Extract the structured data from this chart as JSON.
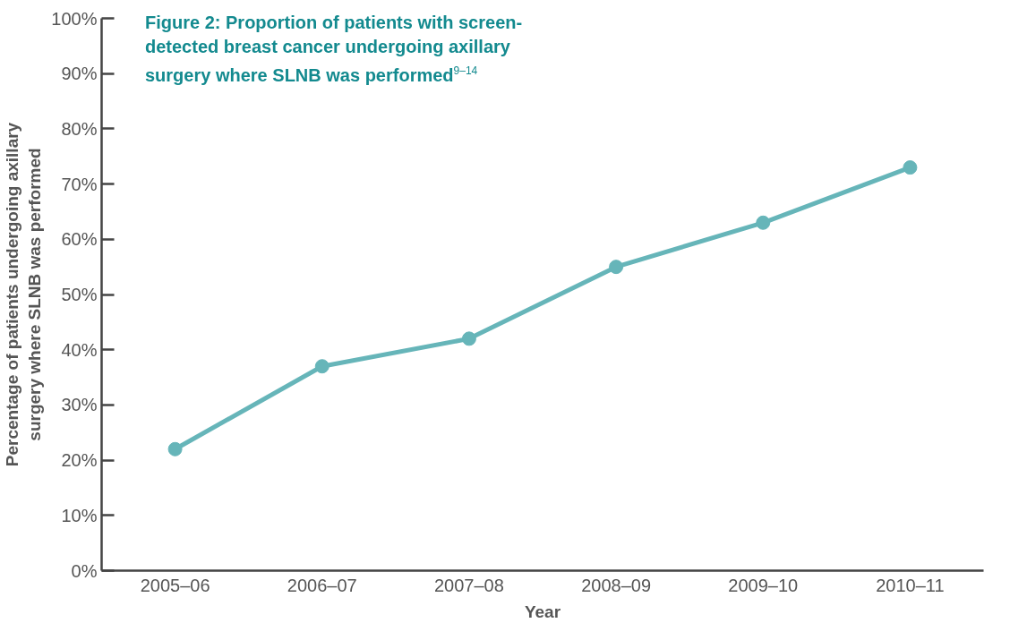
{
  "chart_data": {
    "type": "line",
    "title": "Figure 2: Proportion of patients with screen-detected breast cancer undergoing axillary surgery where SLNB was performed$^{9–14}$",
    "xlabel": "Year",
    "ylabel": "Percentage of patients undergoing axillary\nsurgery where SLNB was performed",
    "categories": [
      "2005–06",
      "2006–07",
      "2007–08",
      "2008–09",
      "2009–10",
      "2010–11"
    ],
    "series": [
      {
        "color": "#66b5b9",
        "values": [
          22,
          37,
          42,
          55,
          63,
          73
        ]
      }
    ],
    "ylim": [
      0,
      100
    ],
    "yticks": [
      {
        "value": 0,
        "label": "0%"
      },
      {
        "value": 10,
        "label": "10%"
      },
      {
        "value": 20,
        "label": "20%"
      },
      {
        "value": 30,
        "label": "30%"
      },
      {
        "value": 40,
        "label": "40%"
      },
      {
        "value": 50,
        "label": "50%"
      },
      {
        "value": 60,
        "label": "60%"
      },
      {
        "value": 70,
        "label": "70%"
      },
      {
        "value": 80,
        "label": "80%"
      },
      {
        "value": 90,
        "label": "90%"
      },
      {
        "value": 100,
        "label": "100%"
      }
    ],
    "marker": "circle",
    "line_style": "solid",
    "grid": false
  }
}
